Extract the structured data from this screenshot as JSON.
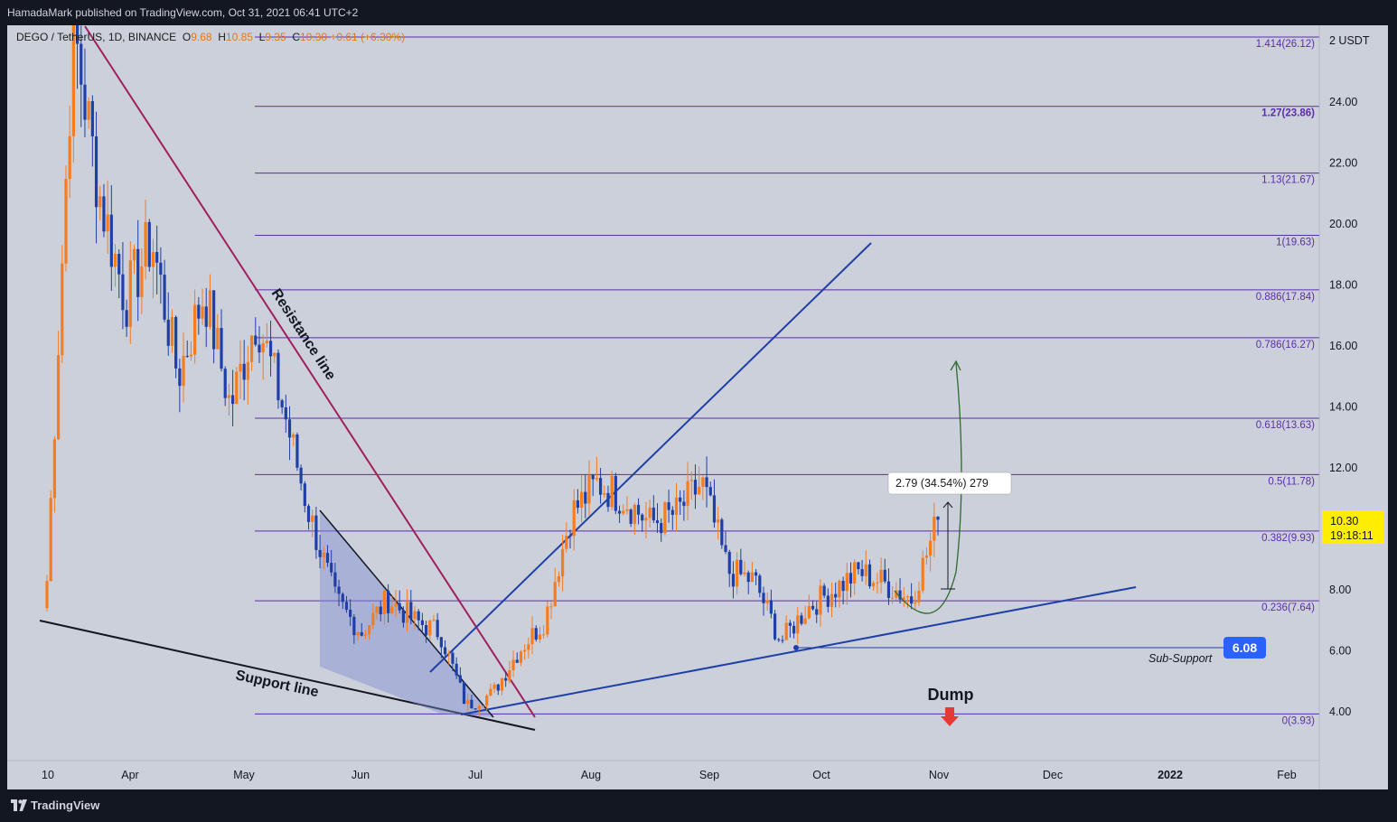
{
  "header": {
    "published": "HamadaMark published on TradingView.com, Oct 31, 2021 06:41 UTC+2"
  },
  "symbol_line": {
    "pair": "DEGO / TetherUS, 1D, BINANCE",
    "o_label": "O",
    "o_value": "9.68",
    "h_label": "H",
    "h_value": "10.85",
    "l_label": "L",
    "l_value": "9.35",
    "c_label": "C",
    "c_value": "10.30",
    "change": "+0.61 (+6.30%)"
  },
  "price_axis": {
    "currency": "2 USDT",
    "ticks": [
      "24.00",
      "22.00",
      "20.00",
      "18.00",
      "16.00",
      "14.00",
      "12.00",
      "8.00",
      "6.00",
      "4.00"
    ]
  },
  "time_axis": {
    "labels": [
      "10",
      "Apr",
      "May",
      "Jun",
      "Jul",
      "Aug",
      "Sep",
      "Oct",
      "Nov",
      "Dec",
      "2022",
      "Feb"
    ]
  },
  "fib_levels": [
    {
      "ratio": 1.414,
      "price": 26.12,
      "label": "1.414(26.12)"
    },
    {
      "ratio": 1.27,
      "price": 23.86,
      "label": "1.27(23.86)"
    },
    {
      "ratio": 1.13,
      "price": 21.67,
      "label": "1.13(21.67)"
    },
    {
      "ratio": 1,
      "price": 19.63,
      "label": "1(19.63)"
    },
    {
      "ratio": 0.886,
      "price": 17.84,
      "label": "0.886(17.84)"
    },
    {
      "ratio": 0.786,
      "price": 16.27,
      "label": "0.786(16.27)"
    },
    {
      "ratio": 0.618,
      "price": 13.63,
      "label": "0.618(13.63)"
    },
    {
      "ratio": 0.5,
      "price": 11.78,
      "label": "0.5(11.78)"
    },
    {
      "ratio": 0.382,
      "price": 9.93,
      "label": "0.382(9.93)"
    },
    {
      "ratio": 0.236,
      "price": 7.64,
      "label": "0.236(7.64)"
    },
    {
      "ratio": 0,
      "price": 3.93,
      "label": "0(3.93)"
    }
  ],
  "current_price": {
    "value": "10.30",
    "countdown": "19:18:11"
  },
  "annotations": {
    "resistance": "Resistance line",
    "support": "Support line",
    "sub_support": "Sub-Support",
    "sub_support_value": "6.08",
    "dump": "Dump",
    "measure": "2.79 (34.54%) 279"
  },
  "colors": {
    "up_candle": "#f57c1f",
    "down_candle": "#1f3fa8",
    "fib_line": "#5b2cae",
    "resistance_line": "#a01f5e",
    "trend_line": "#1f3fa8",
    "price_badge": "#ffee00",
    "sub_support_badge": "#2962ff",
    "dump_arrow": "#e53935",
    "projection_arrow": "#2e6b2e"
  },
  "footer": {
    "brand": "TradingView"
  },
  "chart_data": {
    "type": "candlestick",
    "title": "DEGO / TetherUS, 1D, BINANCE",
    "ylabel": "USDT",
    "ylim": [
      3.0,
      27.0
    ],
    "y_scale": "linear",
    "x": [
      "Mar 10",
      "Mar 17",
      "Mar 24",
      "Mar 31",
      "Apr 07",
      "Apr 14",
      "Apr 21",
      "Apr 28",
      "May 05",
      "May 12",
      "May 19",
      "May 26",
      "Jun 02",
      "Jun 09",
      "Jun 16",
      "Jun 23",
      "Jun 30",
      "Jul 07",
      "Jul 14",
      "Jul 21",
      "Jul 28",
      "Aug 04",
      "Aug 11",
      "Aug 18",
      "Aug 25",
      "Sep 01",
      "Sep 08",
      "Sep 15",
      "Sep 22",
      "Sep 29",
      "Oct 06",
      "Oct 13",
      "Oct 20",
      "Oct 27",
      "Oct 31"
    ],
    "close": [
      8.3,
      26.5,
      21.0,
      17.5,
      19.5,
      15.0,
      17.8,
      14.0,
      17.0,
      14.0,
      10.5,
      7.7,
      6.6,
      7.7,
      7.0,
      6.6,
      4.2,
      4.6,
      6.0,
      7.0,
      10.5,
      11.5,
      11.0,
      10.2,
      10.5,
      11.5,
      8.6,
      8.3,
      6.3,
      7.4,
      8.0,
      8.6,
      8.2,
      7.7,
      10.3
    ],
    "grid": false,
    "legend": "none"
  }
}
